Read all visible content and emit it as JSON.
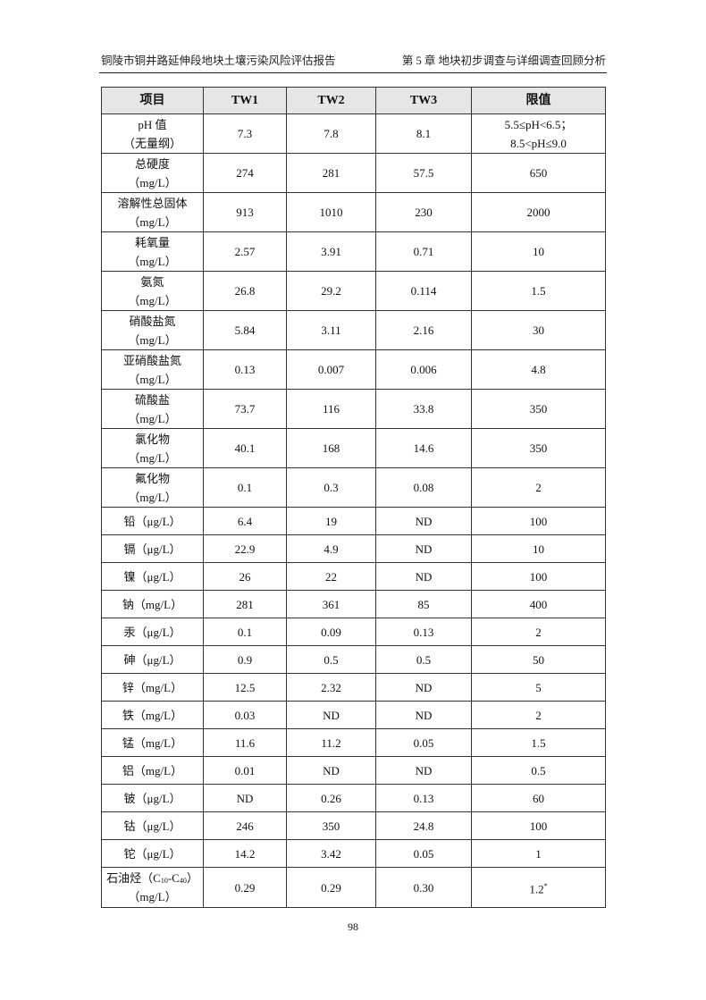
{
  "header": {
    "left": "铜陵市铜井路延伸段地块土壤污染风险评估报告",
    "right": "第 5 章  地块初步调查与详细调查回顾分析"
  },
  "table": {
    "columns": [
      "项目",
      "TW1",
      "TW2",
      "TW3",
      "限值"
    ],
    "rows": [
      {
        "name": "pH 值",
        "unit": "（无量纲）",
        "v": [
          "7.3",
          "7.8",
          "8.1"
        ],
        "limit": "5.5≤pH<6.5；",
        "limit2": "8.5<pH≤9.0"
      },
      {
        "name": "总硬度",
        "unit": "（mg/L）",
        "v": [
          "274",
          "281",
          "57.5"
        ],
        "limit": "650"
      },
      {
        "name": "溶解性总固体",
        "unit": "（mg/L）",
        "v": [
          "913",
          "1010",
          "230"
        ],
        "limit": "2000"
      },
      {
        "name": "耗氧量",
        "unit": "（mg/L）",
        "v": [
          "2.57",
          "3.91",
          "0.71"
        ],
        "limit": "10"
      },
      {
        "name": "氨氮",
        "unit": "（mg/L）",
        "v": [
          "26.8",
          "29.2",
          "0.114"
        ],
        "limit": "1.5"
      },
      {
        "name": "硝酸盐氮",
        "unit": "（mg/L）",
        "v": [
          "5.84",
          "3.11",
          "2.16"
        ],
        "limit": "30"
      },
      {
        "name": "亚硝酸盐氮",
        "unit": "（mg/L）",
        "v": [
          "0.13",
          "0.007",
          "0.006"
        ],
        "limit": "4.8"
      },
      {
        "name": "硫酸盐",
        "unit": "（mg/L）",
        "v": [
          "73.7",
          "116",
          "33.8"
        ],
        "limit": "350"
      },
      {
        "name": "氯化物",
        "unit": "（mg/L）",
        "v": [
          "40.1",
          "168",
          "14.6"
        ],
        "limit": "350"
      },
      {
        "name": "氟化物",
        "unit": "（mg/L）",
        "v": [
          "0.1",
          "0.3",
          "0.08"
        ],
        "limit": "2"
      },
      {
        "name": "铅（μg/L）",
        "v": [
          "6.4",
          "19",
          "ND"
        ],
        "limit": "100"
      },
      {
        "name": "镉（μg/L）",
        "v": [
          "22.9",
          "4.9",
          "ND"
        ],
        "limit": "10"
      },
      {
        "name": "镍（μg/L）",
        "v": [
          "26",
          "22",
          "ND"
        ],
        "limit": "100"
      },
      {
        "name": "钠（mg/L）",
        "v": [
          "281",
          "361",
          "85"
        ],
        "limit": "400"
      },
      {
        "name": "汞（μg/L）",
        "v": [
          "0.1",
          "0.09",
          "0.13"
        ],
        "limit": "2"
      },
      {
        "name": "砷（μg/L）",
        "v": [
          "0.9",
          "0.5",
          "0.5"
        ],
        "limit": "50"
      },
      {
        "name": "锌（mg/L）",
        "v": [
          "12.5",
          "2.32",
          "ND"
        ],
        "limit": "5"
      },
      {
        "name": "铁（mg/L）",
        "v": [
          "0.03",
          "ND",
          "ND"
        ],
        "limit": "2"
      },
      {
        "name": "锰（mg/L）",
        "v": [
          "11.6",
          "11.2",
          "0.05"
        ],
        "limit": "1.5"
      },
      {
        "name": "铝（mg/L）",
        "v": [
          "0.01",
          "ND",
          "ND"
        ],
        "limit": "0.5"
      },
      {
        "name": "铍（μg/L）",
        "v": [
          "ND",
          "0.26",
          "0.13"
        ],
        "limit": "60"
      },
      {
        "name": "钴（μg/L）",
        "v": [
          "246",
          "350",
          "24.8"
        ],
        "limit": "100"
      },
      {
        "name": "铊（μg/L）",
        "v": [
          "14.2",
          "3.42",
          "0.05"
        ],
        "limit": "1"
      }
    ],
    "last": {
      "name_a": "石油烃（C",
      "sub1": "10",
      "name_b": "-C",
      "sub2": "40",
      "name_c": "）",
      "unit": "（mg/L）",
      "v": [
        "0.29",
        "0.29",
        "0.30"
      ],
      "limit": "1.2",
      "limit_sup": "*"
    }
  },
  "page_number": "98"
}
